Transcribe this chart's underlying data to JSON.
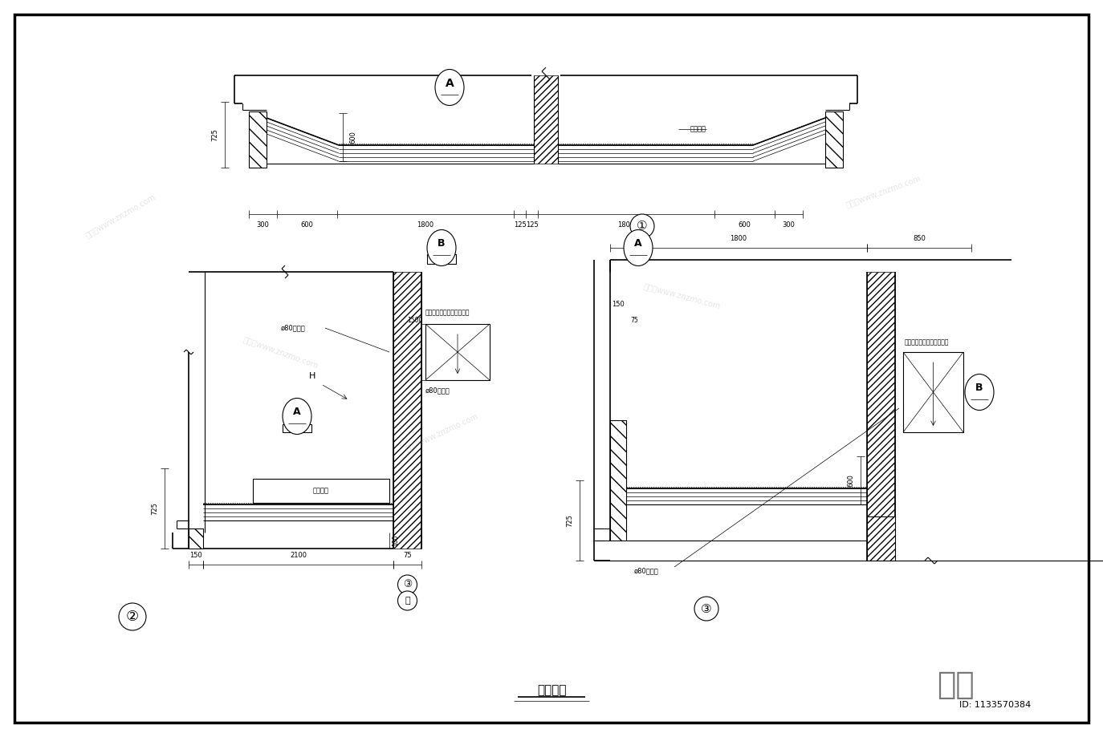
{
  "title": "凸窗大样",
  "bg_color": "#ffffff",
  "line_color": "#000000",
  "fig_width": 13.74,
  "fig_height": 9.19,
  "id_label": "ID: 1133570384",
  "brand_label": "知末"
}
